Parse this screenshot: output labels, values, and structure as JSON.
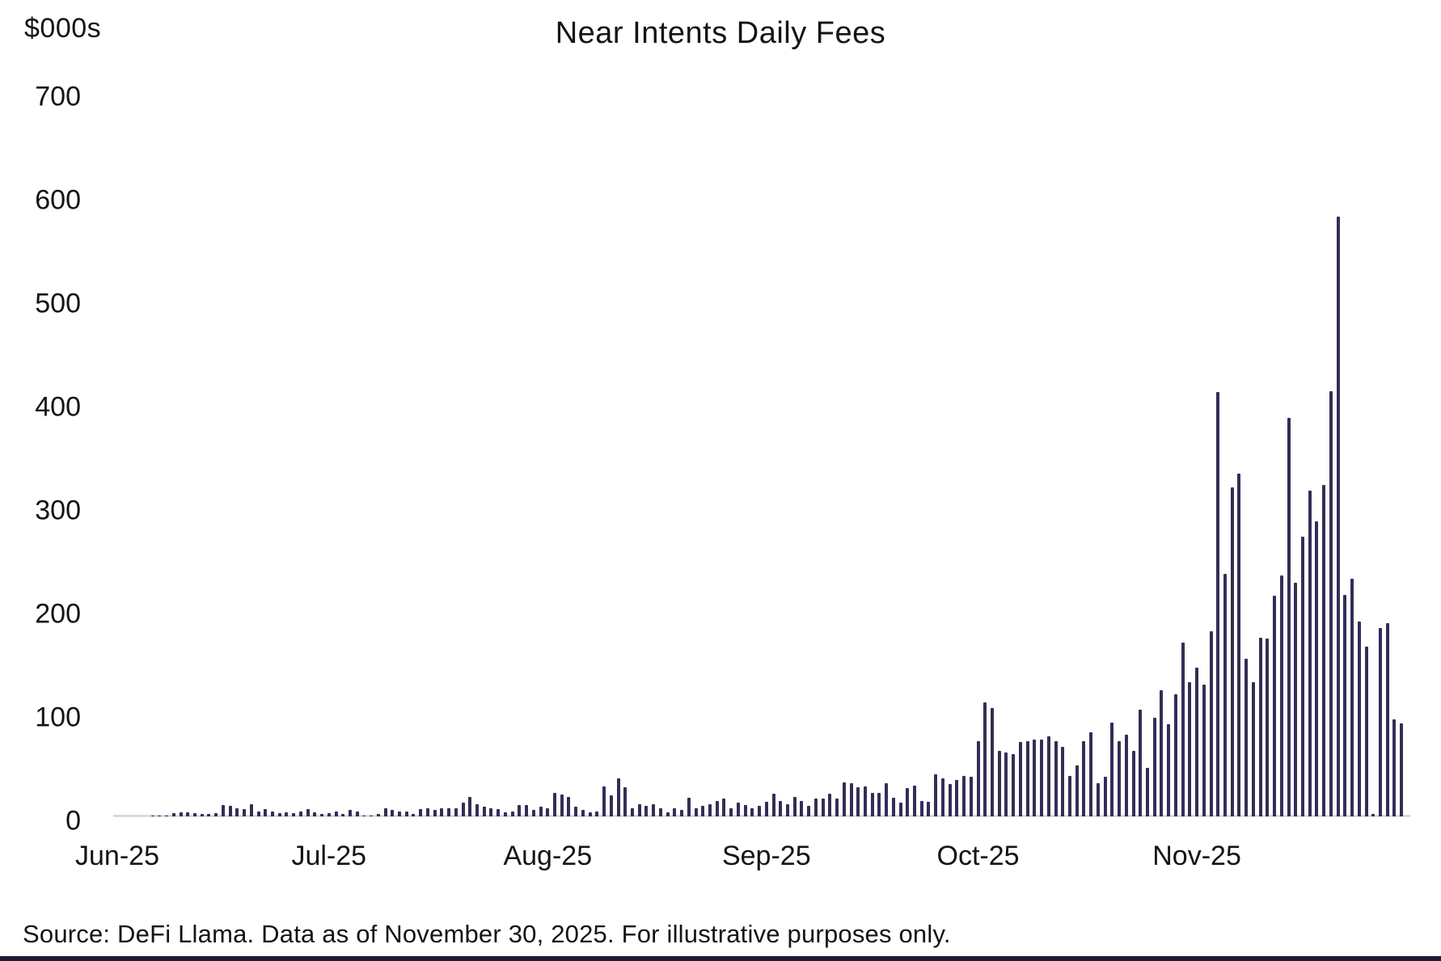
{
  "header": {
    "y_axis_unit": "$000s",
    "title": "Near Intents Daily Fees"
  },
  "footer": {
    "source": "Source: DeFi Llama. Data as of November 30, 2025. For illustrative purposes only."
  },
  "colors": {
    "bar": "#342d57",
    "text": "#141414",
    "axis_line": "#dadada",
    "bottom_border": "#1e1b33",
    "background": "#ffffff"
  },
  "chart_data": {
    "type": "bar",
    "title": "Near Intents Daily Fees",
    "ylabel": "$000s",
    "ylim": [
      0,
      700
    ],
    "y_ticks": [
      700,
      600,
      500,
      400,
      300,
      200,
      100,
      0
    ],
    "grid": false,
    "legend": "none",
    "x_start": "2025-06-01",
    "x_end": "2025-11-30",
    "x_tick_labels": [
      {
        "label": "Jun-25",
        "day_index": 0
      },
      {
        "label": "Jul-25",
        "day_index": 30
      },
      {
        "label": "Aug-25",
        "day_index": 61
      },
      {
        "label": "Sep-25",
        "day_index": 92
      },
      {
        "label": "Oct-25",
        "day_index": 122
      },
      {
        "label": "Nov-25",
        "day_index": 153
      }
    ],
    "categories": [
      "2025-06-01",
      "2025-06-02",
      "2025-06-03",
      "2025-06-04",
      "2025-06-05",
      "2025-06-06",
      "2025-06-07",
      "2025-06-08",
      "2025-06-09",
      "2025-06-10",
      "2025-06-11",
      "2025-06-12",
      "2025-06-13",
      "2025-06-14",
      "2025-06-15",
      "2025-06-16",
      "2025-06-17",
      "2025-06-18",
      "2025-06-19",
      "2025-06-20",
      "2025-06-21",
      "2025-06-22",
      "2025-06-23",
      "2025-06-24",
      "2025-06-25",
      "2025-06-26",
      "2025-06-27",
      "2025-06-28",
      "2025-06-29",
      "2025-06-30",
      "2025-07-01",
      "2025-07-02",
      "2025-07-03",
      "2025-07-04",
      "2025-07-05",
      "2025-07-06",
      "2025-07-07",
      "2025-07-08",
      "2025-07-09",
      "2025-07-10",
      "2025-07-11",
      "2025-07-12",
      "2025-07-13",
      "2025-07-14",
      "2025-07-15",
      "2025-07-16",
      "2025-07-17",
      "2025-07-18",
      "2025-07-19",
      "2025-07-20",
      "2025-07-21",
      "2025-07-22",
      "2025-07-23",
      "2025-07-24",
      "2025-07-25",
      "2025-07-26",
      "2025-07-27",
      "2025-07-28",
      "2025-07-29",
      "2025-07-30",
      "2025-07-31",
      "2025-08-01",
      "2025-08-02",
      "2025-08-03",
      "2025-08-04",
      "2025-08-05",
      "2025-08-06",
      "2025-08-07",
      "2025-08-08",
      "2025-08-09",
      "2025-08-10",
      "2025-08-11",
      "2025-08-12",
      "2025-08-13",
      "2025-08-14",
      "2025-08-15",
      "2025-08-16",
      "2025-08-17",
      "2025-08-18",
      "2025-08-19",
      "2025-08-20",
      "2025-08-21",
      "2025-08-22",
      "2025-08-23",
      "2025-08-24",
      "2025-08-25",
      "2025-08-26",
      "2025-08-27",
      "2025-08-28",
      "2025-08-29",
      "2025-08-30",
      "2025-08-31",
      "2025-09-01",
      "2025-09-02",
      "2025-09-03",
      "2025-09-04",
      "2025-09-05",
      "2025-09-06",
      "2025-09-07",
      "2025-09-08",
      "2025-09-09",
      "2025-09-10",
      "2025-09-11",
      "2025-09-12",
      "2025-09-13",
      "2025-09-14",
      "2025-09-15",
      "2025-09-16",
      "2025-09-17",
      "2025-09-18",
      "2025-09-19",
      "2025-09-20",
      "2025-09-21",
      "2025-09-22",
      "2025-09-23",
      "2025-09-24",
      "2025-09-25",
      "2025-09-26",
      "2025-09-27",
      "2025-09-28",
      "2025-09-29",
      "2025-09-30",
      "2025-10-01",
      "2025-10-02",
      "2025-10-03",
      "2025-10-04",
      "2025-10-05",
      "2025-10-06",
      "2025-10-07",
      "2025-10-08",
      "2025-10-09",
      "2025-10-10",
      "2025-10-11",
      "2025-10-12",
      "2025-10-13",
      "2025-10-14",
      "2025-10-15",
      "2025-10-16",
      "2025-10-17",
      "2025-10-18",
      "2025-10-19",
      "2025-10-20",
      "2025-10-21",
      "2025-10-22",
      "2025-10-23",
      "2025-10-24",
      "2025-10-25",
      "2025-10-26",
      "2025-10-27",
      "2025-10-28",
      "2025-10-29",
      "2025-10-30",
      "2025-10-31",
      "2025-11-01",
      "2025-11-02",
      "2025-11-03",
      "2025-11-04",
      "2025-11-05",
      "2025-11-06",
      "2025-11-07",
      "2025-11-08",
      "2025-11-09",
      "2025-11-10",
      "2025-11-11",
      "2025-11-12",
      "2025-11-13",
      "2025-11-14",
      "2025-11-15",
      "2025-11-16",
      "2025-11-17",
      "2025-11-18",
      "2025-11-19",
      "2025-11-20",
      "2025-11-21",
      "2025-11-22",
      "2025-11-23",
      "2025-11-24",
      "2025-11-25",
      "2025-11-26",
      "2025-11-27",
      "2025-11-28",
      "2025-11-29",
      "2025-11-30"
    ],
    "values": [
      0,
      0,
      0,
      0,
      0,
      1,
      1,
      1,
      3,
      4,
      4,
      3,
      2,
      2,
      3,
      11,
      10,
      8,
      7,
      12,
      5,
      7,
      5,
      3,
      4,
      3,
      5,
      7,
      4,
      2,
      3,
      5,
      2,
      6,
      5,
      1,
      1,
      2,
      8,
      6,
      5,
      5,
      2,
      7,
      8,
      6,
      8,
      8,
      8,
      13,
      19,
      12,
      9,
      8,
      7,
      4,
      5,
      11,
      11,
      6,
      9,
      8,
      23,
      21,
      19,
      9,
      6,
      4,
      5,
      29,
      20,
      37,
      28,
      8,
      12,
      10,
      12,
      8,
      4,
      8,
      6,
      18,
      8,
      10,
      12,
      15,
      17,
      8,
      13,
      11,
      8,
      10,
      14,
      22,
      15,
      12,
      19,
      15,
      10,
      17,
      17,
      22,
      17,
      33,
      32,
      28,
      29,
      23,
      23,
      32,
      18,
      13,
      27,
      30,
      15,
      14,
      41,
      37,
      31,
      35,
      39,
      38,
      73,
      110,
      105,
      63,
      62,
      60,
      72,
      73,
      74,
      74,
      77,
      73,
      67,
      39,
      49,
      73,
      81,
      32,
      38,
      91,
      73,
      79,
      63,
      103,
      47,
      95,
      122,
      89,
      118,
      168,
      130,
      144,
      127,
      179,
      410,
      234,
      318,
      331,
      152,
      130,
      173,
      172,
      213,
      233,
      385,
      226,
      270,
      315,
      285,
      320,
      411,
      580,
      214,
      230,
      188,
      164,
      2,
      182,
      187,
      94,
      90
    ]
  },
  "layout_hints": {
    "note": "values are daily fees in $000s as read from the chart"
  }
}
